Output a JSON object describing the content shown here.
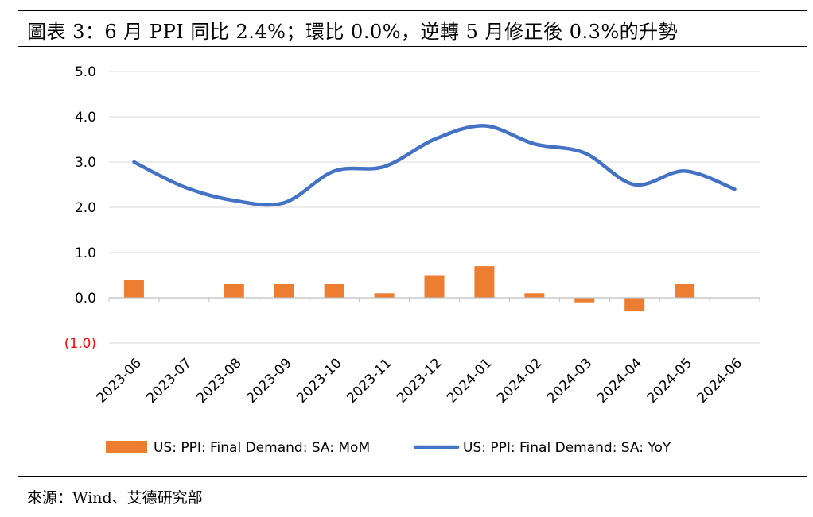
{
  "header": {
    "title": "圖表 3：6 月 PPI 同比 2.4%；環比 0.0%，逆轉 5 月修正後 0.3%的升勢"
  },
  "footer": {
    "source": "來源：Wind、艾德研究部"
  },
  "colors": {
    "bar": "#ED7D31",
    "line": "#4472C4",
    "negative_label": "#FF0000",
    "grid": "#D9D9D9"
  },
  "chart_data": {
    "type": "bar+line",
    "title": "圖表 3：6 月 PPI 同比 2.4%；環比 0.0%，逆轉 5 月修正後 0.3%的升勢",
    "categories": [
      "2023-06",
      "2023-07",
      "2023-08",
      "2023-09",
      "2023-10",
      "2023-11",
      "2023-12",
      "2024-01",
      "2024-02",
      "2024-03",
      "2024-04",
      "2024-05",
      "2024-06"
    ],
    "ylim": [
      -1.0,
      5.0
    ],
    "yticks": [
      5.0,
      4.0,
      3.0,
      2.0,
      1.0,
      0.0,
      -1.0
    ],
    "ytick_labels": [
      "5.0",
      "4.0",
      "3.0",
      "2.0",
      "1.0",
      "0.0",
      "(1.0)"
    ],
    "grid": true,
    "legend_position": "bottom",
    "series": [
      {
        "name": "US: PPI: Final Demand: SA: MoM",
        "type": "bar",
        "values": [
          0.4,
          0.0,
          0.3,
          0.3,
          0.3,
          0.1,
          0.5,
          0.7,
          0.1,
          -0.1,
          -0.3,
          0.3,
          0.0
        ]
      },
      {
        "name": "US: PPI: Final Demand: SA: YoY",
        "type": "line",
        "smooth": true,
        "values": [
          3.0,
          2.45,
          2.15,
          2.1,
          2.8,
          2.9,
          3.5,
          3.8,
          3.4,
          3.2,
          2.5,
          2.8,
          2.4
        ]
      }
    ]
  }
}
